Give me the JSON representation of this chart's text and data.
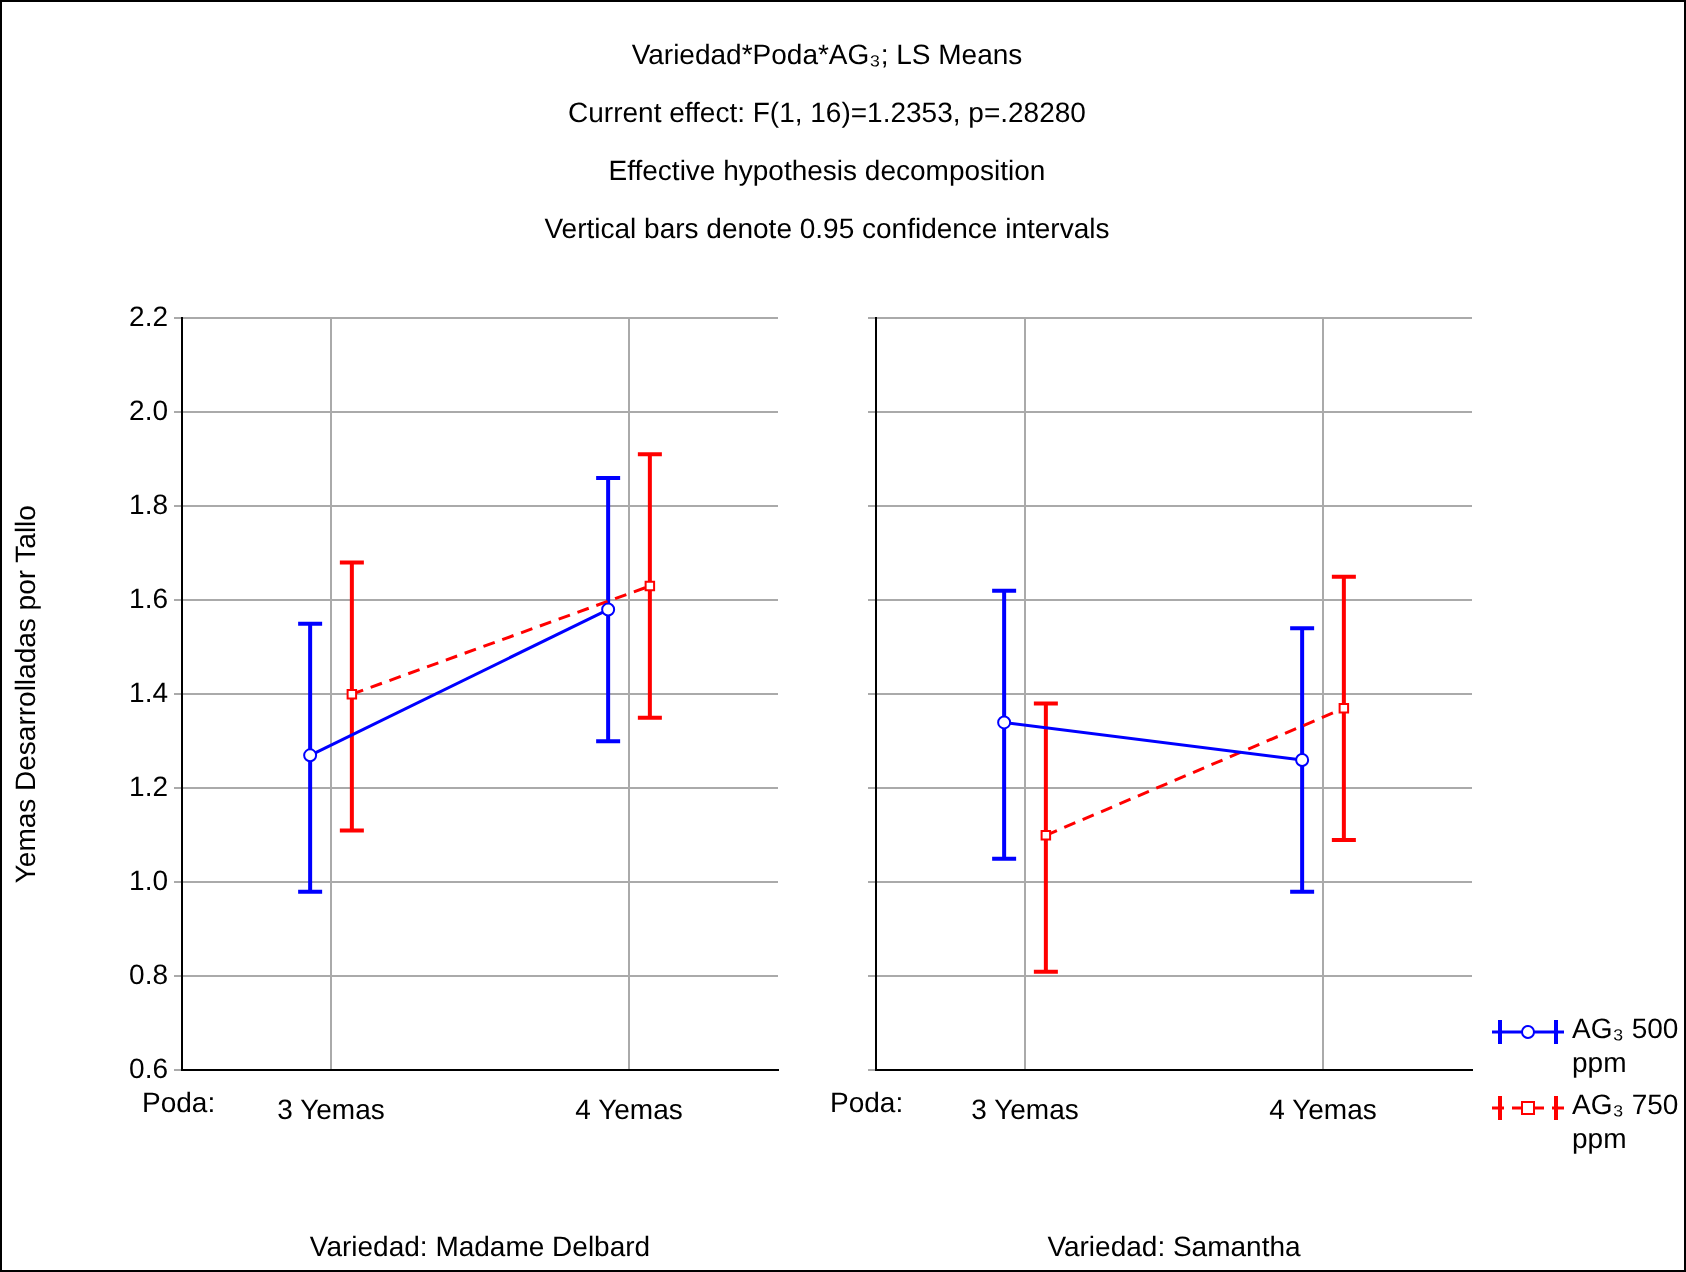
{
  "chart_data": [
    {
      "type": "line",
      "title": "Variedad*Poda*AG₃; LS Means",
      "subtitle": "Current effect: F(1, 16)=1.2353, p=.28280",
      "annotations": [
        "Effective hypothesis decomposition",
        "Vertical bars denote 0.95 confidence intervals",
        "Variedad: Madame Delbard"
      ],
      "xlabel": "Poda:",
      "ylabel": "Yemas Desarrolladas por Tallo",
      "categories": [
        "3 Yemas",
        "4 Yemas"
      ],
      "ylim": [
        0.6,
        2.2
      ],
      "yticks": [
        0.6,
        0.8,
        {
          "value": 1,
          "label": "1.0"
        },
        1.2,
        1.4,
        1.6,
        1.8,
        {
          "value": 2,
          "label": "2.0"
        },
        2.2
      ],
      "grid": true,
      "legend": false,
      "series": [
        {
          "color": "#0000ff",
          "values": [
            1.27,
            1.58
          ],
          "errors": [
            [
              0.98,
              1.55
            ],
            [
              1.3,
              1.86
            ]
          ],
          "marker": "circle",
          "line_style": "solid"
        },
        {
          "color": "#ff0000",
          "values": [
            1.4,
            1.63
          ],
          "errors": [
            [
              1.11,
              1.68
            ],
            [
              1.35,
              1.91
            ]
          ],
          "marker": "square",
          "line_style": "dashed"
        }
      ]
    },
    {
      "type": "line",
      "annotations": [
        "Variedad: Samantha"
      ],
      "xlabel": "Poda:",
      "categories": [
        "3 Yemas",
        "4 Yemas"
      ],
      "ylim": [
        0.6,
        2.2
      ],
      "yticks": [
        0.6,
        0.8,
        1,
        1.2,
        1.4,
        1.6,
        1.8,
        2,
        2.2
      ],
      "grid": true,
      "legend": "bottom right",
      "tick_labels": "x",
      "series": [
        {
          "name": "AG₃ 500 ppm",
          "color": "#0000ff",
          "values": [
            1.34,
            1.26
          ],
          "errors": [
            [
              1.05,
              1.62
            ],
            [
              0.98,
              1.54
            ]
          ],
          "marker": "circle",
          "line_style": "solid"
        },
        {
          "name": "AG₃ 750 ppm",
          "color": "#ff0000",
          "values": [
            1.1,
            1.37
          ],
          "errors": [
            [
              0.81,
              1.38
            ],
            [
              1.09,
              1.65
            ]
          ],
          "marker": "square",
          "line_style": "dashed"
        }
      ]
    }
  ]
}
